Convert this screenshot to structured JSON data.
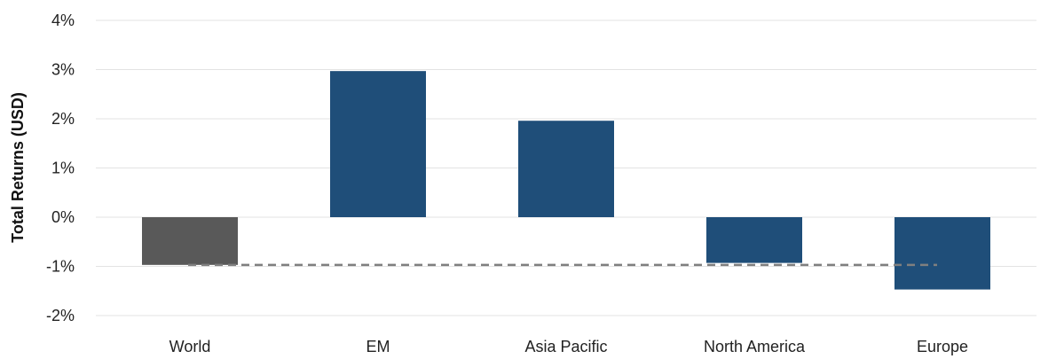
{
  "chart_data": {
    "type": "bar",
    "title": "",
    "xlabel": "",
    "ylabel": "Total Returns (USD)",
    "categories": [
      "World",
      "EM",
      "Asia Pacific",
      "North America",
      "Europe"
    ],
    "values": [
      -0.97,
      2.97,
      1.96,
      -0.93,
      -1.47
    ],
    "colors": [
      "#595959",
      "#1f4e79",
      "#1f4e79",
      "#1f4e79",
      "#1f4e79"
    ],
    "ylim": [
      -2,
      4
    ],
    "yticks": [
      -2,
      -1,
      0,
      1,
      2,
      3,
      4
    ],
    "ytick_labels": [
      "-2%",
      "-1%",
      "0%",
      "1%",
      "2%",
      "3%",
      "4%"
    ],
    "grid": true,
    "reference_line": {
      "value": -0.97,
      "style": "dashed",
      "color": "#7f7f7f"
    }
  }
}
